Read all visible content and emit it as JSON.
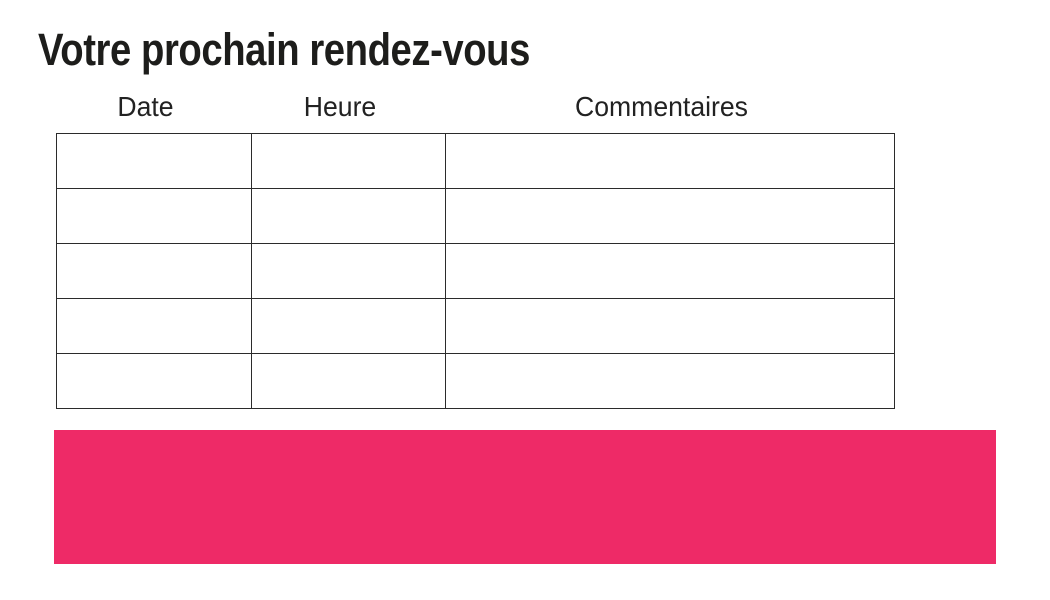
{
  "page": {
    "title": "Votre prochain rendez-vous",
    "background": "#FFFFFF"
  },
  "table": {
    "headers": [
      "Date",
      "Heure",
      "Commentaires"
    ],
    "rows": [
      [
        "",
        "",
        ""
      ],
      [
        "",
        "",
        ""
      ],
      [
        "",
        "",
        ""
      ],
      [
        "",
        "",
        ""
      ],
      [
        "",
        "",
        ""
      ]
    ],
    "border_color": "#2B2B2B"
  },
  "banner": {
    "color": "#EE2A67"
  },
  "colors": {
    "text": "#1D1D1B",
    "accent_pink": "#EE2A67"
  }
}
